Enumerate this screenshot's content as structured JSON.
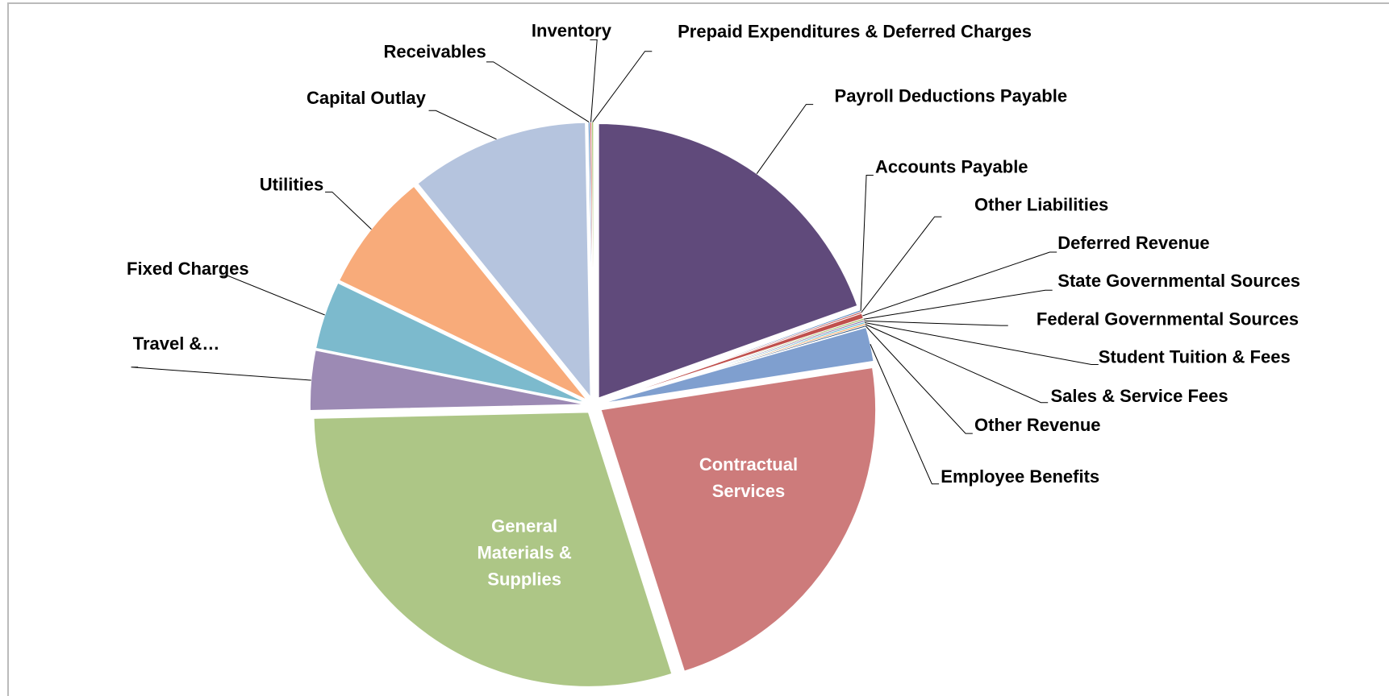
{
  "chart_data": {
    "type": "pie",
    "categories": [
      "Payroll Deductions Payable",
      "Accounts Payable",
      "Other Liabilities",
      "Deferred Revenue",
      "State Governmental Sources",
      "Federal Governmental Sources",
      "Student Tuition & Fees",
      "Sales & Service Fees",
      "Other Revenue",
      "Employee Benefits",
      "Contractual Services",
      "General Materials & Supplies",
      "Travel &…",
      "Fixed Charges",
      "Utilities",
      "Capital Outlay",
      "Receivables",
      "Inventory",
      "Prepaid Expenditures & Deferred Charges"
    ],
    "values": [
      19.5,
      0.1,
      0.1,
      0.3,
      0.1,
      0.1,
      0.1,
      0.1,
      0.1,
      2,
      22.5,
      29.5,
      3.5,
      4,
      7,
      10.5,
      0.1,
      0.1,
      0.1
    ],
    "colors": [
      "#604a7b",
      "#4f81bd",
      "#c0504d",
      "#c0504d",
      "#9bbb59",
      "#8064a2",
      "#4bacc6",
      "#f79646",
      "#2c4d75",
      "#7f9fcf",
      "#cd7b7b",
      "#adc686",
      "#9c8ab4",
      "#7cbacd",
      "#f8ab7a",
      "#b5c4de",
      "#4f81bd",
      "#c0504d",
      "#9bbb59"
    ]
  }
}
